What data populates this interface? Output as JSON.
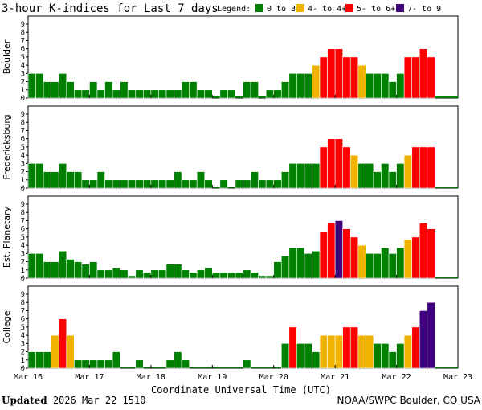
{
  "title": "3-hour K-indices for Last 7 days",
  "legend": {
    "label": "Legend:",
    "items": [
      {
        "label": "0 to 3+",
        "color": "#008000"
      },
      {
        "label": "4- to 4+",
        "color": "#f0b400"
      },
      {
        "label": "5- to 6+",
        "color": "#ff0000"
      },
      {
        "label": "7- to 9",
        "color": "#400080"
      }
    ]
  },
  "xaxis_title": "Coordinate Universal Time (UTC)",
  "footer": {
    "updated_label": "Updated",
    "updated_value": "2026 Mar 22 1510",
    "source": "NOAA/SWPC Boulder, CO USA"
  },
  "chart_data": {
    "type": "bar",
    "x_ticks": [
      "Mar 16",
      "Mar 17",
      "Mar 18",
      "Mar 19",
      "Mar 20",
      "Mar 21",
      "Mar 22",
      "Mar 23"
    ],
    "y_ticks": [
      0,
      1,
      2,
      3,
      4,
      5,
      6,
      7,
      8,
      9
    ],
    "ylim": [
      0,
      9
    ],
    "slots_per_day": 8,
    "days": 7,
    "color_thresholds": [
      {
        "min": 0,
        "max": 3.9,
        "color": "#008000"
      },
      {
        "min": 4,
        "max": 4.9,
        "color": "#f0b400"
      },
      {
        "min": 5,
        "max": 6.9,
        "color": "#ff0000"
      },
      {
        "min": 7,
        "max": 9,
        "color": "#400080"
      }
    ],
    "panels": [
      {
        "name": "Boulder",
        "values": [
          3,
          3,
          2,
          2,
          3,
          2,
          1,
          1,
          2,
          1,
          2,
          1,
          2,
          1,
          1,
          1,
          1,
          1,
          1,
          1,
          2,
          2,
          1,
          1,
          0,
          1,
          1,
          0,
          2,
          2,
          0,
          1,
          1,
          2,
          3,
          3,
          3,
          4,
          5,
          6,
          6,
          5,
          5,
          4,
          3,
          3,
          3,
          2,
          3,
          5,
          5,
          6,
          5,
          0,
          0,
          0
        ]
      },
      {
        "name": "Fredericksburg",
        "values": [
          3,
          3,
          2,
          2,
          3,
          2,
          2,
          1,
          1,
          2,
          1,
          1,
          1,
          1,
          1,
          1,
          1,
          1,
          1,
          2,
          1,
          1,
          2,
          1,
          0,
          1,
          0,
          1,
          1,
          2,
          1,
          1,
          1,
          2,
          3,
          3,
          3,
          3,
          5,
          6,
          6,
          5,
          4,
          3,
          3,
          2,
          3,
          2,
          3,
          4,
          5,
          5,
          5,
          0,
          0,
          0
        ]
      },
      {
        "name": "Est. Planetary",
        "values": [
          3,
          3,
          2,
          2,
          3.3,
          2.3,
          2,
          1.7,
          2,
          1,
          1,
          1.3,
          1,
          0.3,
          1,
          0.7,
          1,
          1,
          1.7,
          1.7,
          1,
          0.7,
          1,
          1.3,
          0.7,
          0.7,
          0.7,
          0.7,
          1,
          0.7,
          0.3,
          0.3,
          2,
          2.7,
          3.7,
          3.7,
          3,
          3.3,
          5.7,
          6.7,
          7,
          6,
          5,
          4,
          3,
          3,
          3.7,
          3,
          3.7,
          4.7,
          5,
          6.7,
          6,
          0,
          0,
          0
        ]
      },
      {
        "name": "College",
        "values": [
          2,
          2,
          2,
          4,
          6,
          4,
          1,
          1,
          1,
          1,
          1,
          2,
          0,
          0,
          1,
          0,
          0,
          0,
          1,
          2,
          1,
          0,
          0,
          0,
          0,
          0,
          0,
          0,
          1,
          0,
          0,
          0,
          0,
          3,
          5,
          3,
          3,
          2,
          4,
          4,
          4,
          5,
          5,
          4,
          4,
          3,
          3,
          2,
          3,
          4,
          5,
          7,
          8,
          0,
          0,
          0
        ]
      }
    ]
  }
}
